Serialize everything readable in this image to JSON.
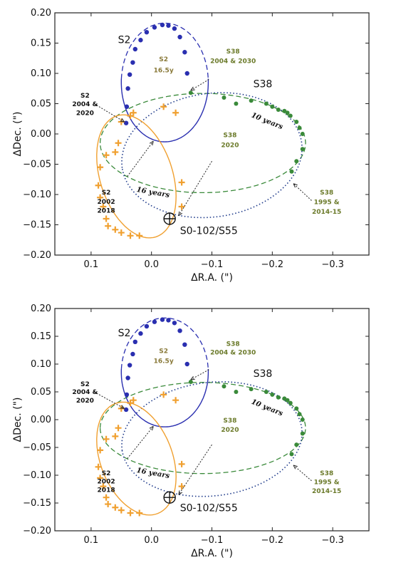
{
  "colors": {
    "s2_orbit": "#2a2fb0",
    "s38_orbit": "#3a8a3a",
    "s55_orbit": "#f0a030",
    "s55_dotted": "#1e3a8a",
    "s38_text": "#6b7a2a",
    "s2_text": "#8a7a3a"
  },
  "chart_data": [
    {
      "type": "scatter",
      "xlabel": "ΔR.A. (\")",
      "ylabel": "ΔDec. (\")",
      "xlim": [
        0.16,
        -0.36
      ],
      "ylim": [
        -0.2,
        0.2
      ],
      "xticks": [
        "0.1",
        "0.0",
        "−0.1",
        "−0.2",
        "−0.3"
      ],
      "yticks": [
        "0.20",
        "0.15",
        "0.10",
        "0.05",
        "0.00",
        "−0.05",
        "−0.10",
        "−0.15",
        "−0.20"
      ],
      "series": [
        {
          "name": "S2",
          "x": [
            0.042,
            0.041,
            0.039,
            0.036,
            0.031,
            0.027,
            0.018,
            0.008,
            -0.005,
            -0.018,
            -0.028,
            -0.038,
            -0.047,
            -0.055,
            -0.059
          ],
          "y": [
            0.018,
            0.045,
            0.075,
            0.098,
            0.118,
            0.14,
            0.155,
            0.168,
            0.176,
            0.18,
            0.179,
            0.174,
            0.16,
            0.135,
            0.1
          ]
        },
        {
          "name": "S38",
          "x": [
            -0.065,
            -0.12,
            -0.14,
            -0.165,
            -0.19,
            -0.2,
            -0.21,
            -0.22,
            -0.225,
            -0.23,
            -0.24,
            -0.245,
            -0.25,
            -0.25,
            -0.24,
            -0.232
          ],
          "y": [
            0.068,
            0.06,
            0.05,
            0.055,
            0.05,
            0.045,
            0.04,
            0.038,
            0.035,
            0.03,
            0.02,
            0.01,
            0.0,
            -0.025,
            -0.045,
            -0.062
          ]
        },
        {
          "name": "S0-102/S55",
          "x": [
            0.05,
            0.035,
            0.03,
            0.055,
            0.06,
            0.075,
            0.085,
            0.088,
            0.085,
            0.08,
            0.075,
            0.072,
            0.06,
            0.05,
            0.035,
            0.02,
            -0.02,
            -0.04,
            -0.05,
            -0.05
          ],
          "y": [
            0.02,
            0.03,
            0.035,
            -0.015,
            -0.03,
            -0.035,
            -0.055,
            -0.085,
            -0.105,
            -0.12,
            -0.14,
            -0.152,
            -0.158,
            -0.163,
            -0.168,
            -0.168,
            0.045,
            0.035,
            -0.08,
            -0.12
          ]
        }
      ],
      "annotations": {
        "s2_name": "S2",
        "s2_period_line1": "S2",
        "s2_period_line2": "16.5y",
        "s38_name": "S38",
        "s38_2004_line1": "S38",
        "s38_2004_line2": "2004 & 2030",
        "s2_2004_line1": "S2",
        "s2_2004_line2": "2004 &",
        "s2_2004_line3": "2020",
        "s38_2020_line1": "S38",
        "s38_2020_line2": "2020",
        "s2_2002_line1": "S2",
        "s2_2002_line2": "2002",
        "s2_2002_line3": "2018",
        "s38_1995_line1": "S38",
        "s38_1995_line2": "1995 &",
        "s38_1995_line3": "2014-15",
        "ten_years": "10 years",
        "sixteen_years": "16 years",
        "s55_name": "S0-102/S55"
      }
    },
    {
      "type": "scatter",
      "xlabel": "ΔR.A. (\")",
      "ylabel": "ΔDec. (\")",
      "xlim": [
        0.16,
        -0.36
      ],
      "ylim": [
        -0.2,
        0.2
      ],
      "xticks": [
        "0.1",
        "0.0",
        "−0.1",
        "−0.2",
        "−0.3"
      ],
      "yticks": [
        "0.20",
        "0.15",
        "0.10",
        "0.05",
        "0.00",
        "−0.05",
        "−0.10",
        "−0.15",
        "−0.20"
      ],
      "series": [
        {
          "name": "S2",
          "x": [
            0.042,
            0.041,
            0.039,
            0.036,
            0.031,
            0.027,
            0.018,
            0.008,
            -0.005,
            -0.018,
            -0.028,
            -0.038,
            -0.047,
            -0.055,
            -0.059
          ],
          "y": [
            0.018,
            0.045,
            0.075,
            0.098,
            0.118,
            0.14,
            0.155,
            0.168,
            0.176,
            0.18,
            0.179,
            0.174,
            0.16,
            0.135,
            0.1
          ]
        },
        {
          "name": "S38",
          "x": [
            -0.065,
            -0.12,
            -0.14,
            -0.165,
            -0.19,
            -0.2,
            -0.21,
            -0.22,
            -0.225,
            -0.23,
            -0.24,
            -0.245,
            -0.25,
            -0.25,
            -0.24,
            -0.232
          ],
          "y": [
            0.068,
            0.06,
            0.05,
            0.055,
            0.05,
            0.045,
            0.04,
            0.038,
            0.035,
            0.03,
            0.02,
            0.01,
            0.0,
            -0.025,
            -0.045,
            -0.062
          ]
        },
        {
          "name": "S0-102/S55",
          "x": [
            0.05,
            0.035,
            0.03,
            0.055,
            0.06,
            0.075,
            0.085,
            0.088,
            0.085,
            0.08,
            0.075,
            0.072,
            0.06,
            0.05,
            0.035,
            0.02,
            -0.02,
            -0.04,
            -0.05,
            -0.05
          ],
          "y": [
            0.02,
            0.03,
            0.035,
            -0.015,
            -0.03,
            -0.035,
            -0.055,
            -0.085,
            -0.105,
            -0.12,
            -0.14,
            -0.152,
            -0.158,
            -0.163,
            -0.168,
            -0.168,
            0.045,
            0.035,
            -0.08,
            -0.12
          ]
        }
      ],
      "annotations": {
        "s2_name": "S2",
        "s2_period_line1": "S2",
        "s2_period_line2": "16.5y",
        "s38_name": "S38",
        "s38_2004_line1": "S38",
        "s38_2004_line2": "2004 & 2030",
        "s2_2004_line1": "S2",
        "s2_2004_line2": "2004 &",
        "s2_2004_line3": "2020",
        "s38_2020_line1": "S38",
        "s38_2020_line2": "2020",
        "s2_2002_line1": "S2",
        "s2_2002_line2": "2002",
        "s2_2002_line3": "2018",
        "s38_1995_line1": "S38",
        "s38_1995_line2": "1995 &",
        "s38_1995_line3": "2014-15",
        "ten_years": "10 years",
        "sixteen_years": "16 years",
        "s55_name": "S0-102/S55"
      }
    }
  ]
}
